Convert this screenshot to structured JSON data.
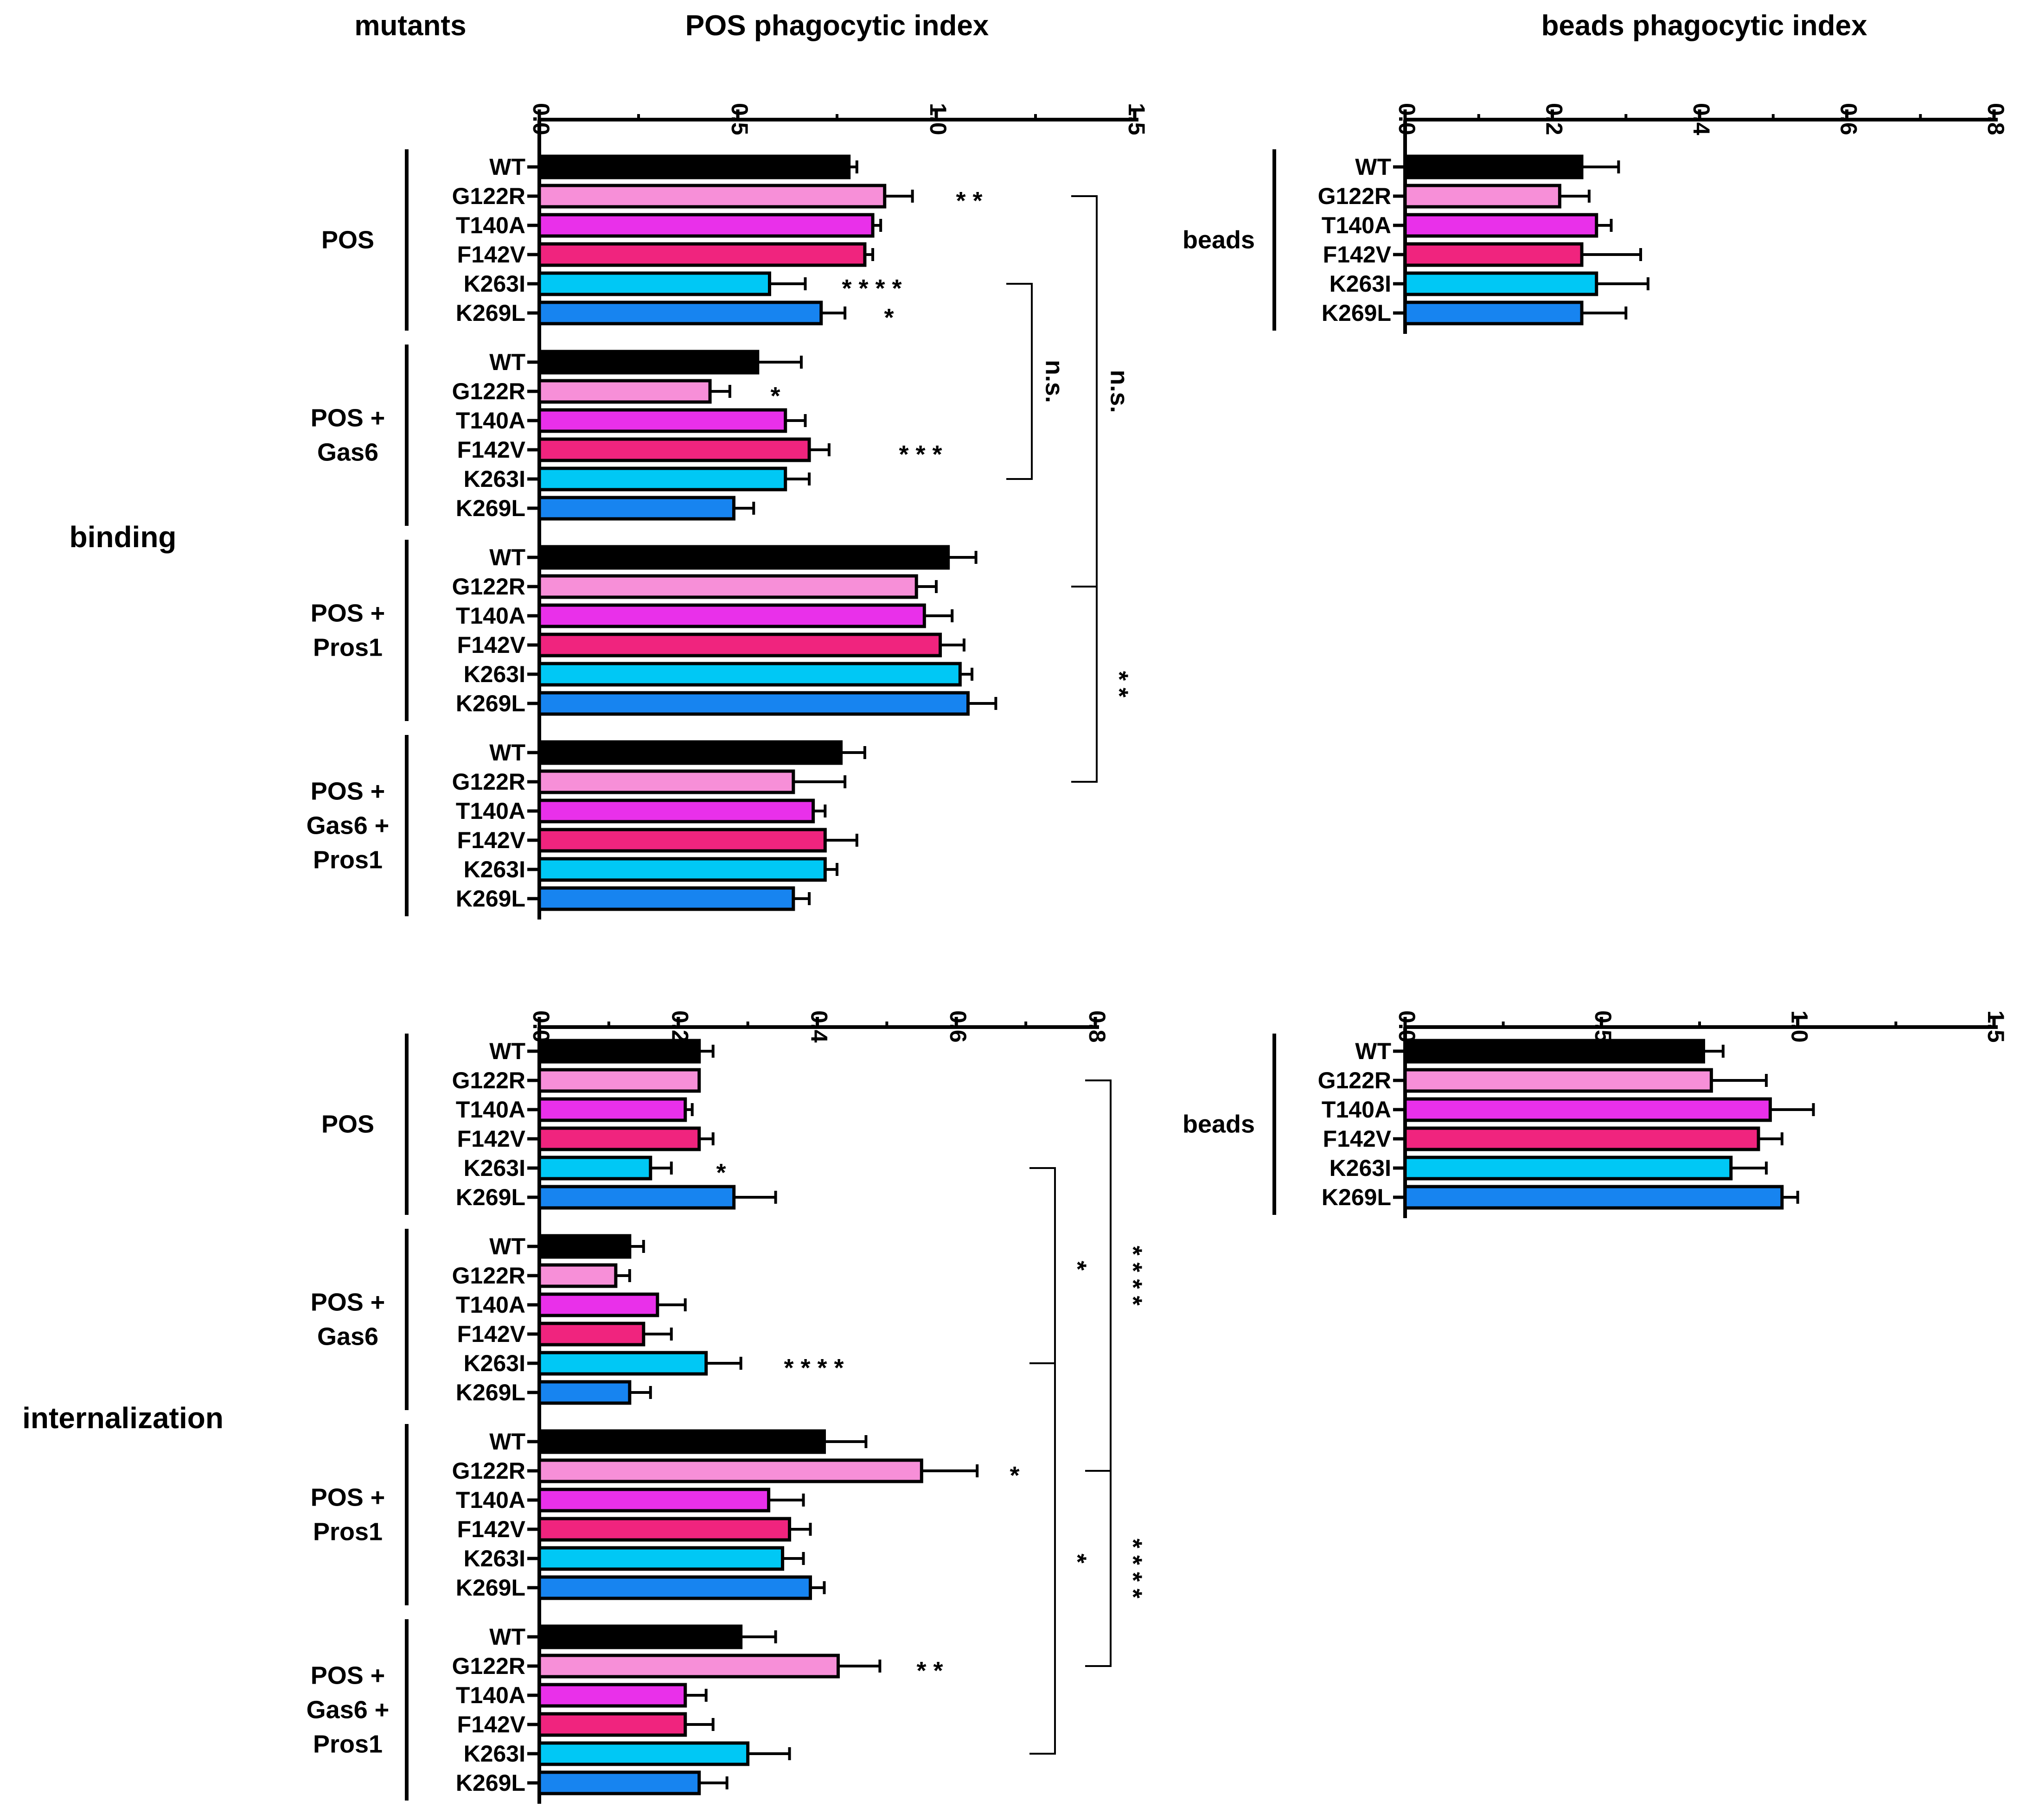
{
  "headers": {
    "mutants": "mutants",
    "pos_index": "POS phagocytic index",
    "beads_index": "beads phagocytic index"
  },
  "row_labels": {
    "binding": "binding",
    "internalization": "internalization"
  },
  "colors": {
    "WT": "#000000",
    "G122R": "#f78fd8",
    "T140A": "#e930ea",
    "F142V": "#f0247e",
    "K263I": "#00c8f5",
    "K269L": "#1784f0"
  },
  "chart_data": [
    {
      "id": "binding_pos",
      "type": "bar",
      "orientation": "horizontal",
      "title": "POS phagocytic index",
      "panel": "binding",
      "xlim": [
        0,
        1.5
      ],
      "ticks": [
        "0.0",
        "0.5",
        "1.0",
        "1.5"
      ],
      "groups": [
        {
          "label": "POS",
          "categories": [
            "WT",
            "G122R",
            "T140A",
            "F142V",
            "K263I",
            "K269L"
          ],
          "values": [
            0.78,
            0.87,
            0.84,
            0.82,
            0.58,
            0.71
          ],
          "errors": [
            0.02,
            0.07,
            0.02,
            0.02,
            0.09,
            0.06
          ]
        },
        {
          "label": "POS + Gas6",
          "categories": [
            "WT",
            "G122R",
            "T140A",
            "F142V",
            "K263I",
            "K269L"
          ],
          "values": [
            0.55,
            0.43,
            0.62,
            0.68,
            0.62,
            0.49
          ],
          "errors": [
            0.11,
            0.05,
            0.05,
            0.05,
            0.06,
            0.05
          ]
        },
        {
          "label": "POS + Pros1",
          "categories": [
            "WT",
            "G122R",
            "T140A",
            "F142V",
            "K263I",
            "K269L"
          ],
          "values": [
            1.03,
            0.95,
            0.97,
            1.01,
            1.06,
            1.08
          ],
          "errors": [
            0.07,
            0.05,
            0.07,
            0.06,
            0.03,
            0.07
          ]
        },
        {
          "label": "POS + Gas6 + Pros1",
          "categories": [
            "WT",
            "G122R",
            "T140A",
            "F142V",
            "K263I",
            "K269L"
          ],
          "values": [
            0.76,
            0.64,
            0.69,
            0.72,
            0.72,
            0.64
          ],
          "errors": [
            0.06,
            0.13,
            0.03,
            0.08,
            0.03,
            0.04
          ]
        }
      ],
      "annotations": [
        {
          "text": "* *",
          "group": 0,
          "category": "G122R"
        },
        {
          "text": "* * * *",
          "group": 0,
          "category": "K263I"
        },
        {
          "text": "*",
          "group": 0,
          "category": "K269L"
        },
        {
          "text": "*",
          "group": 1,
          "category": "G122R"
        },
        {
          "text": "* * *",
          "group": 1,
          "category": "F142V"
        }
      ],
      "brackets": [
        {
          "label": "n.s.",
          "from": "POS:K263I",
          "to": "POS + Gas6:K263I"
        },
        {
          "label": "n.s.",
          "from": "POS:G122R",
          "to": "POS + Pros1:G122R"
        },
        {
          "label": "* *",
          "from": "POS + Pros1:G122R",
          "to": "POS + Gas6 + Pros1:G122R"
        }
      ]
    },
    {
      "id": "internalization_pos",
      "type": "bar",
      "orientation": "horizontal",
      "title": "POS phagocytic index",
      "panel": "internalization",
      "xlim": [
        0,
        0.8
      ],
      "ticks": [
        "0.0",
        "0.2",
        "0.4",
        "0.6",
        "0.8"
      ],
      "groups": [
        {
          "label": "POS",
          "categories": [
            "WT",
            "G122R",
            "T140A",
            "F142V",
            "K263I",
            "K269L"
          ],
          "values": [
            0.23,
            0.23,
            0.21,
            0.23,
            0.16,
            0.28
          ],
          "errors": [
            0.02,
            0.0,
            0.01,
            0.02,
            0.03,
            0.06
          ]
        },
        {
          "label": "POS + Gas6",
          "categories": [
            "WT",
            "G122R",
            "T140A",
            "F142V",
            "K263I",
            "K269L"
          ],
          "values": [
            0.13,
            0.11,
            0.17,
            0.15,
            0.24,
            0.13
          ],
          "errors": [
            0.02,
            0.02,
            0.04,
            0.04,
            0.05,
            0.03
          ]
        },
        {
          "label": "POS + Pros1",
          "categories": [
            "WT",
            "G122R",
            "T140A",
            "F142V",
            "K263I",
            "K269L"
          ],
          "values": [
            0.41,
            0.55,
            0.33,
            0.36,
            0.35,
            0.39
          ],
          "errors": [
            0.06,
            0.08,
            0.05,
            0.03,
            0.03,
            0.02
          ]
        },
        {
          "label": "POS + Gas6 + Pros1",
          "categories": [
            "WT",
            "G122R",
            "T140A",
            "F142V",
            "K263I",
            "K269L"
          ],
          "values": [
            0.29,
            0.43,
            0.21,
            0.21,
            0.3,
            0.23
          ],
          "errors": [
            0.05,
            0.06,
            0.03,
            0.04,
            0.06,
            0.04
          ]
        }
      ],
      "annotations": [
        {
          "text": "*",
          "group": 0,
          "category": "K263I"
        },
        {
          "text": "* * * *",
          "group": 1,
          "category": "K263I"
        },
        {
          "text": "*",
          "group": 2,
          "category": "G122R"
        },
        {
          "text": "* *",
          "group": 3,
          "category": "G122R"
        }
      ],
      "brackets": [
        {
          "label": "*",
          "from": "POS:K263I",
          "to": "POS + Gas6:K263I"
        },
        {
          "label": "*",
          "from": "POS + Gas6:K263I",
          "to": "POS + Gas6 + Pros1:K263I"
        },
        {
          "label": "* * * *",
          "from": "POS:G122R",
          "to": "POS + Pros1:G122R"
        },
        {
          "label": "* * * *",
          "from": "POS + Pros1:G122R",
          "to": "POS + Gas6 + Pros1:G122R"
        }
      ]
    },
    {
      "id": "binding_beads",
      "type": "bar",
      "orientation": "horizontal",
      "title": "beads phagocytic index",
      "panel": "binding",
      "xlim": [
        0,
        0.8
      ],
      "ticks": [
        "0.0",
        "0.2",
        "0.4",
        "0.6",
        "0.8"
      ],
      "groups": [
        {
          "label": "beads",
          "categories": [
            "WT",
            "G122R",
            "T140A",
            "F142V",
            "K263I",
            "K269L"
          ],
          "values": [
            0.24,
            0.21,
            0.26,
            0.24,
            0.26,
            0.24
          ],
          "errors": [
            0.05,
            0.04,
            0.02,
            0.08,
            0.07,
            0.06
          ]
        }
      ],
      "annotations": [],
      "brackets": []
    },
    {
      "id": "internalization_beads",
      "type": "bar",
      "orientation": "horizontal",
      "title": "beads phagocytic index",
      "panel": "internalization",
      "xlim": [
        0,
        1.5
      ],
      "ticks": [
        "0.0",
        "0.5",
        "1.0",
        "1.5"
      ],
      "groups": [
        {
          "label": "beads",
          "categories": [
            "WT",
            "G122R",
            "T140A",
            "F142V",
            "K263I",
            "K269L"
          ],
          "values": [
            0.76,
            0.78,
            0.93,
            0.9,
            0.83,
            0.96
          ],
          "errors": [
            0.05,
            0.14,
            0.11,
            0.06,
            0.09,
            0.04
          ]
        }
      ],
      "annotations": [],
      "brackets": []
    }
  ]
}
